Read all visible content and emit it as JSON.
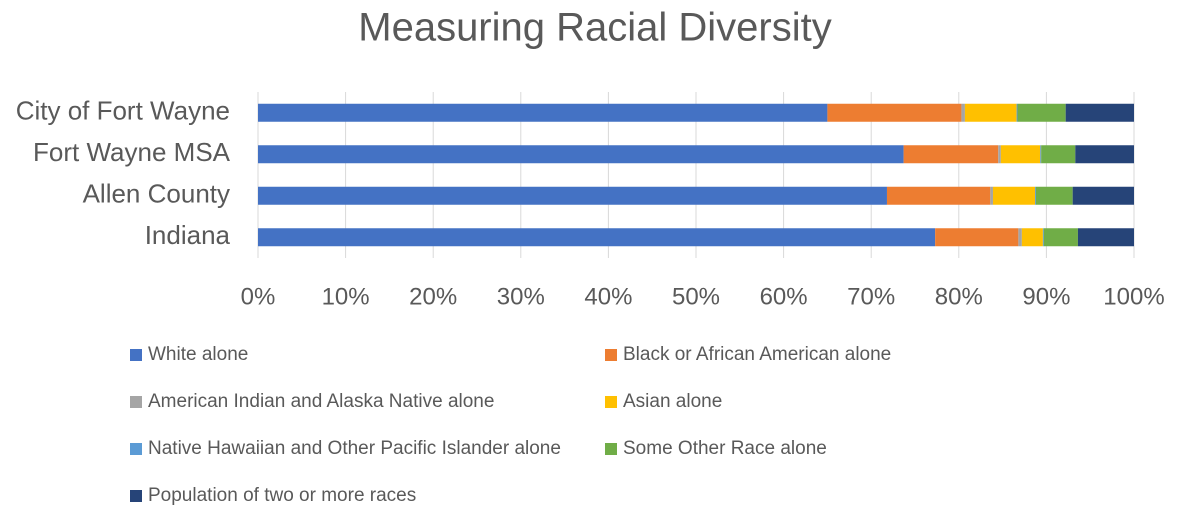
{
  "chart_data": {
    "type": "stacked_bar_horizontal",
    "title": "Measuring Racial Diversity",
    "categories": [
      "City of Fort Wayne",
      "Fort Wayne MSA",
      "Allen County",
      "Indiana"
    ],
    "series": [
      {
        "name": "White alone",
        "color": "#4472C4",
        "values": [
          65.0,
          73.7,
          71.8,
          77.3
        ]
      },
      {
        "name": "Black or African American alone",
        "color": "#ED7D31",
        "values": [
          15.3,
          10.8,
          11.8,
          9.5
        ]
      },
      {
        "name": "American Indian and Alaska Native alone",
        "color": "#A5A5A5",
        "values": [
          0.4,
          0.3,
          0.3,
          0.4
        ]
      },
      {
        "name": "Asian alone",
        "color": "#FFC000",
        "values": [
          5.9,
          4.5,
          4.8,
          2.4
        ]
      },
      {
        "name": "Native Hawaiian and Other Pacific Islander alone",
        "color": "#5B9BD5",
        "values": [
          0.1,
          0.1,
          0.1,
          0.1
        ]
      },
      {
        "name": "Some Other Race alone",
        "color": "#70AD47",
        "values": [
          5.5,
          3.9,
          4.2,
          3.9
        ]
      },
      {
        "name": "Population of two or more races",
        "color": "#264478",
        "values": [
          7.8,
          6.7,
          7.0,
          6.4
        ]
      }
    ],
    "xlim": [
      0,
      100
    ],
    "xticks": [
      {
        "value": 0,
        "label": "0%"
      },
      {
        "value": 10,
        "label": "10%"
      },
      {
        "value": 20,
        "label": "20%"
      },
      {
        "value": 30,
        "label": "30%"
      },
      {
        "value": 40,
        "label": "40%"
      },
      {
        "value": 50,
        "label": "50%"
      },
      {
        "value": 60,
        "label": "60%"
      },
      {
        "value": 70,
        "label": "70%"
      },
      {
        "value": 80,
        "label": "80%"
      },
      {
        "value": 90,
        "label": "90%"
      },
      {
        "value": 100,
        "label": "100%"
      }
    ],
    "grid": true,
    "legend": "bottom"
  }
}
